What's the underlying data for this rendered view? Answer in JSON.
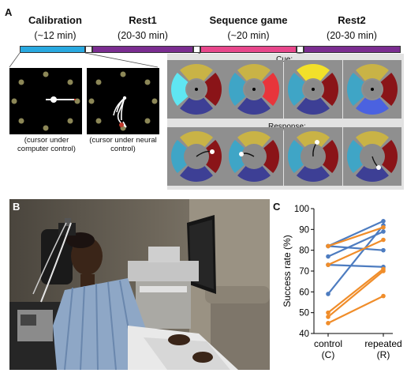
{
  "figure": {
    "panel_a": {
      "letter": "A",
      "phases": [
        {
          "title": "Calibration",
          "duration": "(~12 min)",
          "color": "#29a9e0"
        },
        {
          "title": "Rest1",
          "duration": "(20-30 min)",
          "color": "#7b2d91"
        },
        {
          "title": "Sequence game",
          "duration": "(~20 min)",
          "color": "#e8478b"
        },
        {
          "title": "Rest2",
          "duration": "(20-30 min)",
          "color": "#7b2d91"
        }
      ],
      "calib_caption_1": "(cursor under computer control)",
      "calib_caption_2": "(cursor under neural control)",
      "cue_label": "Cue:",
      "response_label": "Response:"
    },
    "panel_b": {
      "letter": "B"
    },
    "panel_c": {
      "letter": "C"
    }
  },
  "chart_data": {
    "type": "line",
    "title": "",
    "xlabel": "",
    "ylabel": "Success rate (%)",
    "ylim": [
      40,
      100
    ],
    "yticks": [
      "40",
      "50",
      "60",
      "70",
      "80",
      "90",
      "100"
    ],
    "categories": [
      [
        "control",
        "(C)"
      ],
      [
        "repeated",
        "(R)"
      ]
    ],
    "series": [
      {
        "color": "#4d7cc0",
        "values": [
          82,
          94
        ]
      },
      {
        "color": "#4d7cc0",
        "values": [
          82,
          80
        ]
      },
      {
        "color": "#4d7cc0",
        "values": [
          77,
          89
        ]
      },
      {
        "color": "#4d7cc0",
        "values": [
          73,
          72
        ]
      },
      {
        "color": "#4d7cc0",
        "values": [
          59,
          92
        ]
      },
      {
        "color": "#f08d2a",
        "values": [
          73,
          85
        ]
      },
      {
        "color": "#f08d2a",
        "values": [
          82,
          91
        ]
      },
      {
        "color": "#f08d2a",
        "values": [
          50,
          71
        ]
      },
      {
        "color": "#f08d2a",
        "values": [
          48,
          70
        ]
      },
      {
        "color": "#f08d2a",
        "values": [
          45,
          58
        ]
      }
    ]
  },
  "colors": {
    "wheel_yellow": "#c9b346",
    "wheel_red": "#8a1418",
    "wheel_blue": "#3d3f95",
    "wheel_cyan": "#3fa5c6",
    "wheel_center": "#8a8a8a",
    "wheel_bg": "#8f8f8f"
  }
}
